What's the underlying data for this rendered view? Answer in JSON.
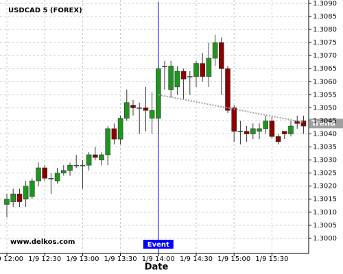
{
  "chart_data": {
    "type": "candlestick",
    "title": "USDCAD 5 (FOREX)",
    "x_label": "Date",
    "watermark": "www.delkos.com",
    "categories": [
      "1/9 12:00",
      null,
      null,
      null,
      null,
      null,
      "1/9 12:30",
      null,
      null,
      null,
      null,
      null,
      "1/9 13:00",
      null,
      null,
      null,
      null,
      null,
      "1/9 13:30",
      null,
      null,
      null,
      null,
      null,
      "1/9 14:00",
      null,
      null,
      null,
      null,
      null,
      "1/9 14:30",
      null,
      null,
      null,
      null,
      null,
      "1/9 15:00",
      null,
      null,
      null,
      null,
      null,
      "1/9 15:30",
      null,
      null,
      null,
      null,
      null
    ],
    "open": [
      1.3013,
      1.3014,
      1.3017,
      1.3015,
      1.3016,
      1.3022,
      1.3027,
      1.3023,
      1.3022,
      1.3025,
      1.3026,
      1.3028,
      1.3028,
      1.3028,
      1.3032,
      1.303,
      1.3032,
      1.3042,
      1.3038,
      1.3046,
      1.3051,
      1.305,
      1.305,
      1.3046,
      1.3046,
      1.3066,
      1.3057,
      1.3058,
      1.3064,
      1.3062,
      1.3062,
      1.3067,
      1.3062,
      1.3069,
      1.3075,
      1.3065,
      1.305,
      1.3041,
      1.3041,
      1.304,
      1.3041,
      1.3042,
      1.3045,
      1.3039,
      1.3041,
      1.304,
      1.3045,
      1.3045
    ],
    "high": [
      1.3017,
      1.3019,
      1.3019,
      1.3022,
      1.3023,
      1.3029,
      1.3028,
      1.3025,
      1.3027,
      1.3028,
      1.3029,
      1.3032,
      1.303,
      1.3033,
      1.3035,
      1.3033,
      1.3043,
      1.3044,
      1.3047,
      1.3057,
      1.3053,
      1.3052,
      1.3058,
      1.3056,
      1.3066,
      1.3068,
      1.3068,
      1.3066,
      1.3065,
      1.3064,
      1.3068,
      1.3071,
      1.3075,
      1.3078,
      1.3077,
      1.3066,
      1.3051,
      1.3045,
      1.3043,
      1.3044,
      1.3044,
      1.3047,
      1.3047,
      1.304,
      1.3041,
      1.3045,
      1.3047,
      1.3047
    ],
    "low": [
      1.3008,
      1.3012,
      1.3012,
      1.3012,
      1.3015,
      1.302,
      1.3022,
      1.3017,
      1.3021,
      1.3024,
      1.3024,
      1.3027,
      1.3019,
      1.3026,
      1.303,
      1.3028,
      1.3028,
      1.3036,
      1.3036,
      1.3045,
      1.3047,
      1.304,
      1.3041,
      1.304,
      1.304,
      1.3057,
      1.3054,
      1.3055,
      1.3053,
      1.3055,
      1.3058,
      1.306,
      1.3058,
      1.3066,
      1.3055,
      1.3048,
      1.3037,
      1.3036,
      1.3037,
      1.3038,
      1.3038,
      1.304,
      1.3038,
      1.3036,
      1.3038,
      1.3039,
      1.3042,
      1.304
    ],
    "close": [
      1.3015,
      1.3017,
      1.3014,
      1.302,
      1.3022,
      1.3027,
      1.3023,
      1.3023,
      1.3025,
      1.3026,
      1.3028,
      1.3028,
      1.3028,
      1.3032,
      1.3031,
      1.3032,
      1.3042,
      1.3038,
      1.3046,
      1.3052,
      1.305,
      1.305,
      1.3049,
      1.3049,
      1.3065,
      1.3066,
      1.3066,
      1.3064,
      1.3061,
      1.3062,
      1.3067,
      1.3062,
      1.3069,
      1.3075,
      1.3065,
      1.3049,
      1.3041,
      1.3041,
      1.304,
      1.3042,
      1.3042,
      1.3045,
      1.3039,
      1.3037,
      1.304,
      1.3043,
      1.3044,
      1.3043
    ],
    "up_color": "#1e961e",
    "down_color": "#8b0000",
    "ylim": [
      1.29942,
      1.30913
    ],
    "yticks": [
      {
        "value": 1.3,
        "label": "1.3000"
      },
      1.3005,
      {
        "value": 1.301,
        "label": "1.3010"
      },
      1.3015,
      {
        "value": 1.302,
        "label": "1.3020"
      },
      1.3025,
      {
        "value": 1.303,
        "label": "1.3030"
      },
      1.3035,
      {
        "value": 1.304,
        "label": "1.3040"
      },
      1.3045,
      {
        "value": 1.305,
        "label": "1.3050"
      },
      1.3055,
      {
        "value": 1.306,
        "label": "1.3060"
      },
      1.3065,
      {
        "value": 1.307,
        "label": "1.3070"
      },
      1.3075,
      {
        "value": 1.308,
        "label": "1.3080"
      },
      1.3085,
      {
        "value": 1.309,
        "label": "1.3090"
      }
    ],
    "grid": true,
    "event": {
      "x": "1/9 14:00",
      "label": "Event",
      "color": "#0000ff"
    },
    "trend": {
      "label": "Trend",
      "color": "#a0a0a0",
      "values": [
        null,
        null,
        null,
        null,
        null,
        null,
        null,
        null,
        null,
        null,
        null,
        null,
        null,
        null,
        null,
        null,
        null,
        null,
        null,
        null,
        null,
        null,
        null,
        null,
        1.3055,
        1.30545,
        1.30541,
        1.30536,
        1.30532,
        1.30527,
        1.30523,
        1.30518,
        1.30513,
        1.30509,
        1.30504,
        1.305,
        1.30495,
        1.30491,
        1.30486,
        1.30481,
        1.30477,
        1.30472,
        1.30468,
        1.30463,
        1.30459,
        1.30454,
        1.30449,
        1.30445
      ]
    }
  }
}
